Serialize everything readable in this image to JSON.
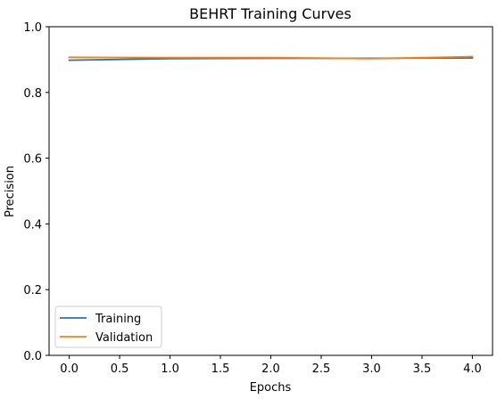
{
  "chart_data": {
    "type": "line",
    "title": "BEHRT Training Curves",
    "xlabel": "Epochs",
    "ylabel": "Precision",
    "xlim": [
      -0.2,
      4.2
    ],
    "ylim": [
      0.0,
      1.0
    ],
    "xticks": [
      0.0,
      0.5,
      1.0,
      1.5,
      2.0,
      2.5,
      3.0,
      3.5,
      4.0
    ],
    "xtick_labels": [
      "0.0",
      "0.5",
      "1.0",
      "1.5",
      "2.0",
      "2.5",
      "3.0",
      "3.5",
      "4.0"
    ],
    "yticks": [
      0.0,
      0.2,
      0.4,
      0.6,
      0.8,
      1.0
    ],
    "ytick_labels": [
      "0.0",
      "0.2",
      "0.4",
      "0.6",
      "0.8",
      "1.0"
    ],
    "grid": false,
    "legend_position": "lower-left",
    "series": [
      {
        "name": "Training",
        "color": "#1f77b4",
        "x": [
          0,
          1,
          2,
          3,
          4
        ],
        "y": [
          0.898,
          0.903,
          0.904,
          0.904,
          0.905
        ]
      },
      {
        "name": "Validation",
        "color": "#ff7f0e",
        "x": [
          0,
          1,
          2,
          3,
          4
        ],
        "y": [
          0.907,
          0.906,
          0.906,
          0.903,
          0.909
        ]
      }
    ]
  }
}
